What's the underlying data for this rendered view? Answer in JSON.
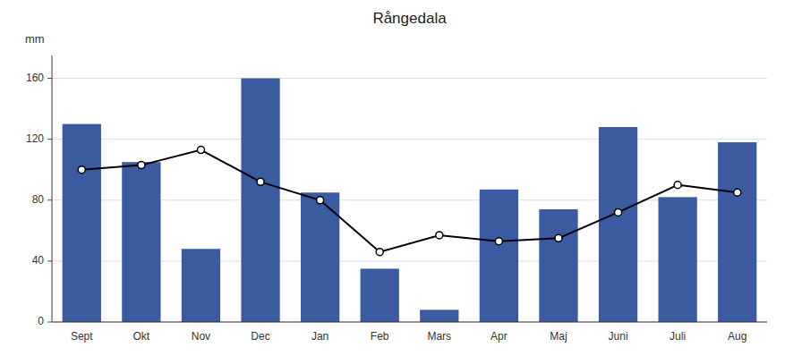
{
  "chart_data": {
    "type": "bar",
    "title": "Rångedala",
    "ylabel": "mm",
    "categories": [
      "Sept",
      "Okt",
      "Nov",
      "Dec",
      "Jan",
      "Feb",
      "Mars",
      "Apr",
      "Maj",
      "Juni",
      "Juli",
      "Aug"
    ],
    "series": [
      {
        "type": "bar",
        "color": "#3A5BA0",
        "values": [
          130,
          105,
          48,
          160,
          85,
          35,
          8,
          87,
          74,
          128,
          82,
          118
        ]
      },
      {
        "type": "line",
        "color": "#000000",
        "marker": "circle",
        "values": [
          100,
          103,
          113,
          92,
          80,
          46,
          57,
          53,
          55,
          72,
          90,
          85
        ]
      }
    ],
    "ylim": [
      0,
      175
    ],
    "yticks": [
      0,
      40,
      80,
      120,
      160
    ],
    "grid": true
  }
}
